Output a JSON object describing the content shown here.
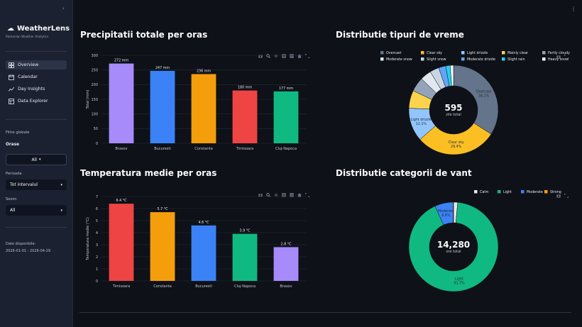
{
  "app": {
    "name": "WeatherLens",
    "subtitle": "Romanian Weather Analytics"
  },
  "nav": [
    {
      "label": "Overview",
      "icon": "overview-icon",
      "active": true
    },
    {
      "label": "Calendar",
      "icon": "calendar-icon",
      "active": false
    },
    {
      "label": "Day Insights",
      "icon": "day-insights-icon",
      "active": false
    },
    {
      "label": "Data Explorer",
      "icon": "data-explorer-icon",
      "active": false
    }
  ],
  "filters": {
    "heading": "Filtre globale",
    "cities_label": "Orase",
    "cities_value": "All",
    "period_label": "Perioada",
    "period_value": "Tot intervalul",
    "season_label": "Sezon",
    "season_value": "All"
  },
  "dates": {
    "label": "Date disponibile:",
    "range": "2026-01-01 - 2026-04-29"
  },
  "panels": {
    "precip_title": "Precipitatii totale per oras",
    "weather_title": "Distributie tipuri de vreme",
    "temp_title": "Temperatura medie per oras",
    "wind_title": "Distributie categorii de vant"
  },
  "chart_data": [
    {
      "type": "bar",
      "title": "Precipitatii totale per oras",
      "ylabel": "Total (mm)",
      "xlabel": "",
      "categories": [
        "Brasov",
        "Bucuresti",
        "Constanta",
        "Timisoara",
        "Cluj-Napoca"
      ],
      "values": [
        272,
        247,
        236,
        180,
        177
      ],
      "labels": [
        "272 mm",
        "247 mm",
        "236 mm",
        "180 mm",
        "177 mm"
      ],
      "colors": [
        "#a78bfa",
        "#3b82f6",
        "#f59e0b",
        "#ef4444",
        "#10b981"
      ],
      "ylim": [
        0,
        300
      ],
      "yticks": [
        0,
        50,
        100,
        150,
        200,
        250,
        300
      ]
    },
    {
      "type": "pie",
      "title": "Distributie tipuri de vreme",
      "legend": [
        "Overcast",
        "Clear sky",
        "Light drizzle",
        "Mainly clear",
        "Partly cloudy",
        "Moderate snow",
        "Slight snow",
        "Moderate drizzle",
        "Slight rain",
        "Heavy snow"
      ],
      "colors": [
        "#64748b",
        "#fbbf24",
        "#93c5fd",
        "#fcd34d",
        "#94a3b8",
        "#e2e8f0",
        "#cbd5e1",
        "#60a5fa",
        "#22d3ee",
        "#f1f5f9"
      ],
      "values": [
        34.1,
        29.4,
        12.1,
        6.5,
        5.2,
        4.0,
        3.3,
        2.6,
        1.6,
        1.2
      ],
      "slice_labels": [
        "Overcast\n34.1%",
        "Clear sky\n29.4%",
        "Light drizzle\n12.1%",
        "",
        "",
        "",
        "",
        "",
        "",
        ""
      ],
      "center_value": "595",
      "center_label": "zile total"
    },
    {
      "type": "bar",
      "title": "Temperatura medie per oras",
      "ylabel": "Temperatura medie (°C)",
      "xlabel": "",
      "categories": [
        "Timisoara",
        "Constanta",
        "Bucuresti",
        "Cluj-Napoca",
        "Brasov"
      ],
      "values": [
        6.4,
        5.7,
        4.6,
        3.9,
        2.8
      ],
      "labels": [
        "6.4 °C",
        "5.7 °C",
        "4.6 °C",
        "3.9 °C",
        "2.8 °C"
      ],
      "colors": [
        "#ef4444",
        "#f59e0b",
        "#3b82f6",
        "#10b981",
        "#a78bfa"
      ],
      "ylim": [
        0,
        7
      ],
      "yticks": [
        0,
        1,
        2,
        3,
        4,
        5,
        6,
        7
      ]
    },
    {
      "type": "pie",
      "title": "Distributie categorii de vant",
      "legend": [
        "Calm",
        "Light",
        "Moderate",
        "Strong"
      ],
      "colors": [
        "#e2e8f0",
        "#10b981",
        "#3b82f6",
        "#f59e0b"
      ],
      "values": [
        1.5,
        91.7,
        6.6,
        0.2
      ],
      "slice_labels": [
        "",
        "Light\n91.7%",
        "Moderate\n6.6%",
        ""
      ],
      "center_value": "14,280",
      "center_label": "ore total"
    }
  ]
}
